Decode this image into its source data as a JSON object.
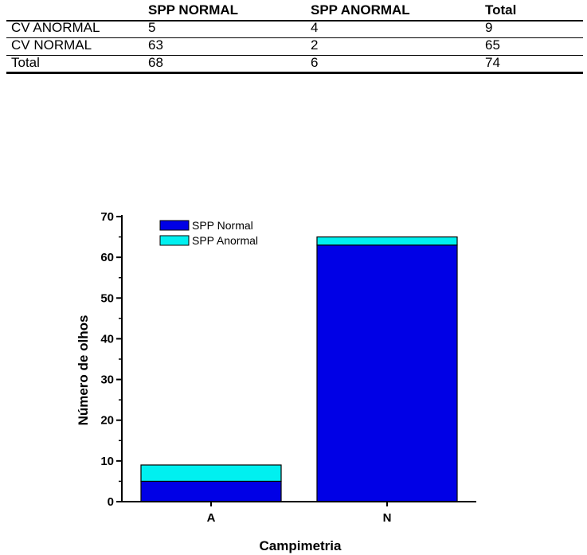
{
  "table": {
    "headers": [
      "",
      "SPP NORMAL",
      "SPP ANORMAL",
      "Total"
    ],
    "rows": [
      [
        "CV ANORMAL",
        "5",
        "4",
        "9"
      ],
      [
        "CV NORMAL",
        "63",
        "2",
        "65"
      ],
      [
        "Total",
        "68",
        "6",
        "74"
      ]
    ]
  },
  "chart_data": {
    "type": "bar",
    "stacked": true,
    "categories": [
      "A",
      "N"
    ],
    "series": [
      {
        "name": "SPP Normal",
        "values": [
          5,
          63
        ],
        "color": "#0000e6"
      },
      {
        "name": "SPP Anormal",
        "values": [
          4,
          2
        ],
        "color": "#00f0f0"
      }
    ],
    "xlabel": "Campimetria",
    "ylabel": "Número de olhos",
    "ylim": [
      0,
      70
    ],
    "yticks": [
      0,
      10,
      20,
      30,
      40,
      50,
      60,
      70
    ],
    "legend": "top-left",
    "grid": false
  }
}
